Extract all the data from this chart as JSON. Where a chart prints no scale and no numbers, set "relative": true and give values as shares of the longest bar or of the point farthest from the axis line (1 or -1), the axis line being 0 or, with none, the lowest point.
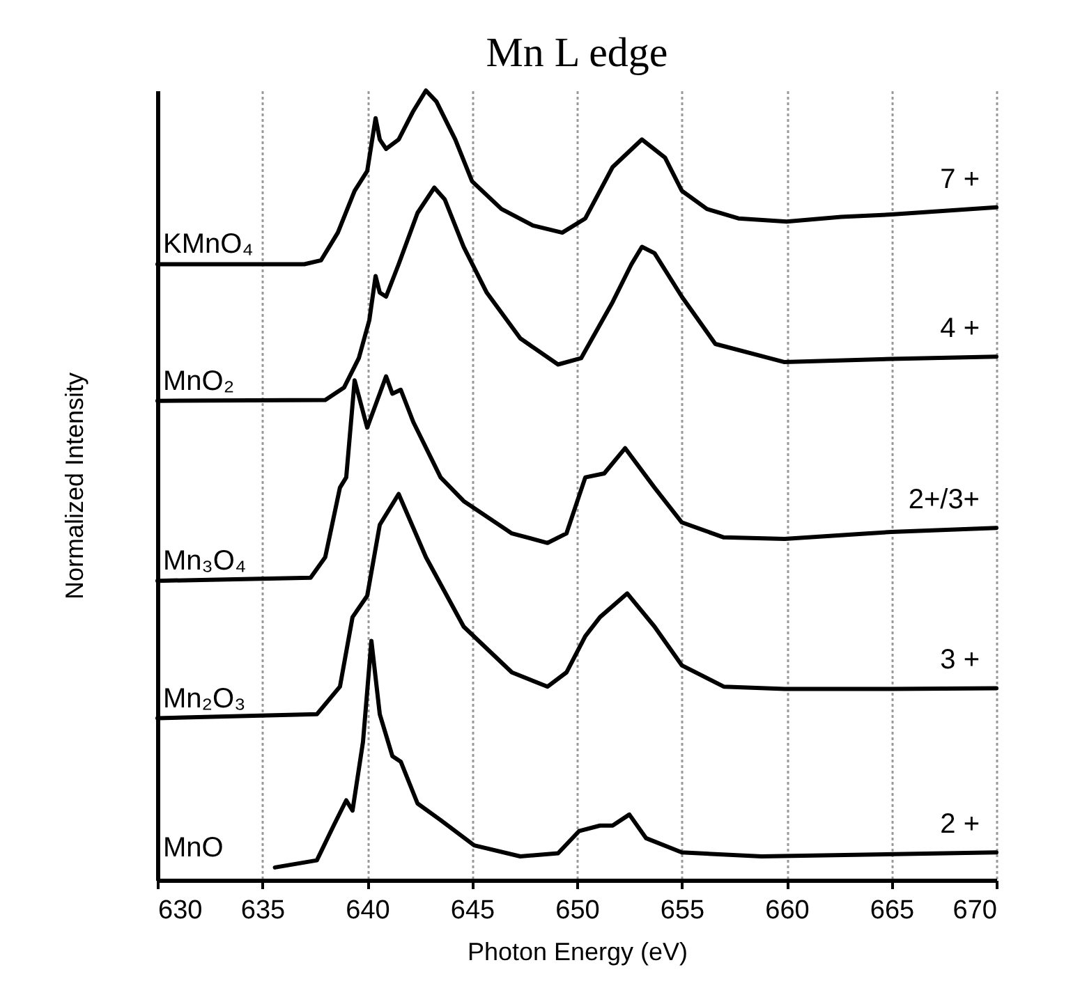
{
  "chart_data": {
    "type": "line",
    "title": "Mn L edge",
    "xlabel": "Photon Energy (eV)",
    "ylabel": "Normalized Intensity",
    "xlim": [
      630,
      670
    ],
    "xticks": [
      630,
      635,
      640,
      645,
      650,
      655,
      660,
      665,
      670
    ],
    "relative": true,
    "grid": "x",
    "series": [
      {
        "name": "KMnO₄",
        "color": "#000000",
        "x": [
          630,
          637,
          637.8,
          638.6,
          639.4,
          640,
          640.4,
          640.6,
          640.9,
          641.5,
          642.2,
          642.8,
          643.3,
          644.2,
          645,
          646.4,
          647.9,
          649.3,
          650.4,
          651.7,
          653.1,
          654.2,
          655,
          656.2,
          657.7,
          660,
          662.6,
          665,
          670
        ],
        "values": [
          0.78,
          0.78,
          0.785,
          0.82,
          0.873,
          0.898,
          0.965,
          0.938,
          0.926,
          0.938,
          0.974,
          1.0,
          0.986,
          0.938,
          0.885,
          0.85,
          0.829,
          0.82,
          0.838,
          0.903,
          0.938,
          0.915,
          0.873,
          0.85,
          0.838,
          0.834,
          0.84,
          0.843,
          0.852
        ]
      },
      {
        "name": "MnO₂",
        "color": "#000000",
        "x": [
          630,
          638,
          638.9,
          639.6,
          640.1,
          640.4,
          640.6,
          640.9,
          641.5,
          642.4,
          643.2,
          643.7,
          644.6,
          645.7,
          647.3,
          649.1,
          650.2,
          651.7,
          652.6,
          653.1,
          653.7,
          655,
          656.6,
          659.9,
          665,
          670
        ],
        "values": [
          0.607,
          0.608,
          0.624,
          0.661,
          0.709,
          0.765,
          0.744,
          0.739,
          0.78,
          0.845,
          0.877,
          0.862,
          0.802,
          0.744,
          0.686,
          0.653,
          0.661,
          0.732,
          0.78,
          0.802,
          0.794,
          0.739,
          0.679,
          0.656,
          0.66,
          0.663
        ]
      },
      {
        "name": "Mn₃O₄",
        "color": "#000000",
        "x": [
          630,
          637.3,
          638,
          638.7,
          639,
          639.4,
          640,
          640.9,
          641.2,
          641.6,
          642.2,
          643.5,
          644.6,
          646.9,
          648.6,
          649.5,
          650.4,
          651.3,
          652.3,
          653.7,
          655,
          657,
          659.9,
          665,
          670
        ],
        "values": [
          0.379,
          0.383,
          0.409,
          0.497,
          0.51,
          0.633,
          0.573,
          0.638,
          0.616,
          0.621,
          0.58,
          0.51,
          0.48,
          0.439,
          0.427,
          0.439,
          0.51,
          0.515,
          0.547,
          0.497,
          0.453,
          0.434,
          0.432,
          0.441,
          0.446
        ]
      },
      {
        "name": "Mn₂O₃",
        "color": "#000000",
        "x": [
          630,
          637.6,
          638.7,
          639.3,
          640,
          640.6,
          641.5,
          642.8,
          644.6,
          646.9,
          648.6,
          649.5,
          650.4,
          651.1,
          652.4,
          653.7,
          655,
          657,
          659.9,
          665,
          670
        ],
        "values": [
          0.205,
          0.21,
          0.245,
          0.333,
          0.36,
          0.45,
          0.489,
          0.409,
          0.321,
          0.263,
          0.245,
          0.263,
          0.309,
          0.333,
          0.363,
          0.321,
          0.272,
          0.245,
          0.242,
          0.242,
          0.243
        ]
      },
      {
        "name": "MnO",
        "color": "#000000",
        "x": [
          635.6,
          637.6,
          638.4,
          639,
          639.3,
          639.8,
          640.2,
          640.6,
          641.2,
          641.6,
          642.4,
          643.5,
          645.1,
          647.3,
          649.1,
          650.1,
          651.1,
          651.7,
          652.5,
          653.3,
          655,
          658.8,
          670
        ],
        "values": [
          0.016,
          0.025,
          0.069,
          0.101,
          0.088,
          0.175,
          0.303,
          0.21,
          0.157,
          0.15,
          0.097,
          0.076,
          0.044,
          0.03,
          0.034,
          0.062,
          0.069,
          0.069,
          0.083,
          0.053,
          0.035,
          0.03,
          0.035
        ]
      }
    ],
    "annotations": [
      "7 +",
      "4 +",
      "2+/3+",
      "3 +",
      "2 +"
    ]
  }
}
